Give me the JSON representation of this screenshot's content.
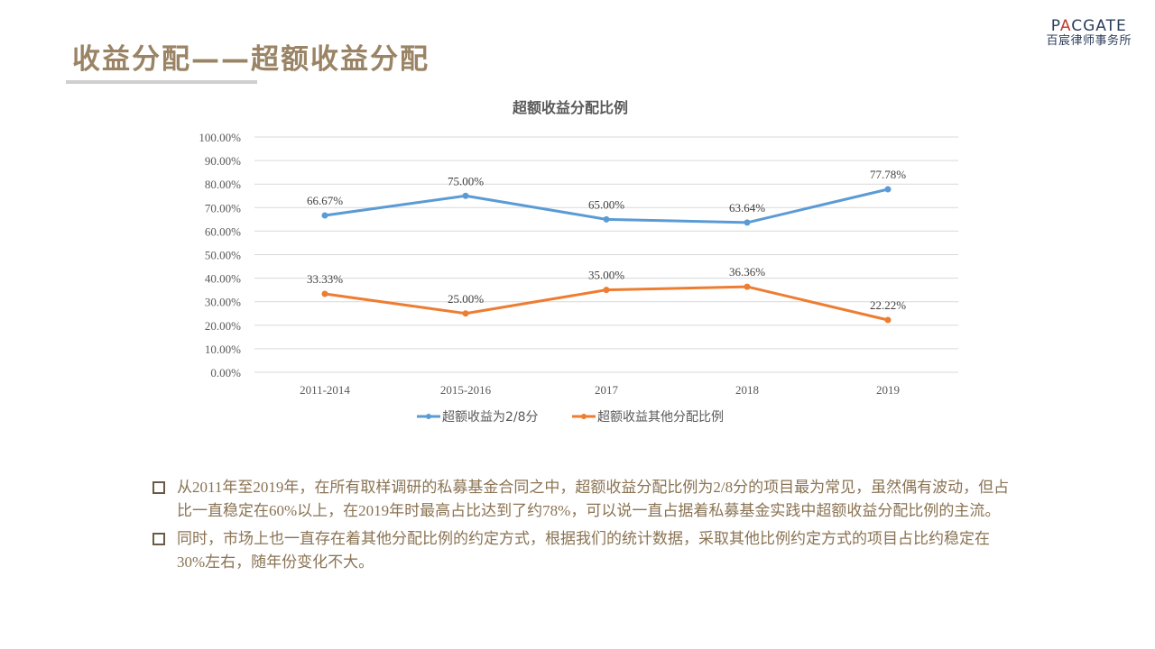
{
  "page": {
    "title": "收益分配——超额收益分配",
    "logo": {
      "en_pre": "P",
      "en_a": "A",
      "en_post": "CGATE",
      "cn": "百宸律师事务所"
    }
  },
  "chart_data": {
    "type": "line",
    "title": "超额收益分配比例",
    "categories": [
      "2011-2014",
      "2015-2016",
      "2017",
      "2018",
      "2019"
    ],
    "ylim": [
      0,
      100
    ],
    "yticks": [
      "0.00%",
      "10.00%",
      "20.00%",
      "30.00%",
      "40.00%",
      "50.00%",
      "60.00%",
      "70.00%",
      "80.00%",
      "90.00%",
      "100.00%"
    ],
    "grid": true,
    "legend_position": "bottom",
    "series": [
      {
        "name": "超额收益为2/8分",
        "color": "#5b9bd5",
        "values": [
          66.67,
          75.0,
          65.0,
          63.64,
          77.78
        ],
        "labels": [
          "66.67%",
          "75.00%",
          "65.00%",
          "63.64%",
          "77.78%"
        ]
      },
      {
        "name": "超额收益其他分配比例",
        "color": "#ed7d31",
        "values": [
          33.33,
          25.0,
          35.0,
          36.36,
          22.22
        ],
        "labels": [
          "33.33%",
          "25.00%",
          "35.00%",
          "36.36%",
          "22.22%"
        ]
      }
    ]
  },
  "bullets": [
    "从2011年至2019年，在所有取样调研的私募基金合同之中，超额收益分配比例为2/8分的项目最为常见，虽然偶有波动，但占比一直稳定在60%以上，在2019年时最高占比达到了约78%，可以说一直占据着私募基金实践中超额收益分配比例的主流。",
    "同时，市场上也一直存在着其他分配比例的约定方式，根据我们的统计数据，采取其他比例约定方式的项目占比约稳定在30%左右，随年份变化不大。"
  ]
}
